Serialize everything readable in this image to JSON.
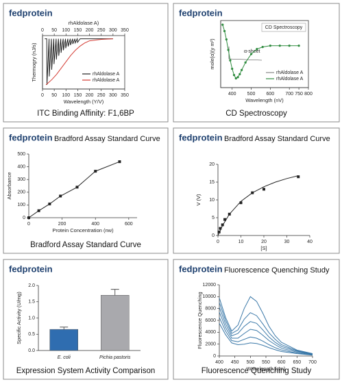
{
  "chart_data": [
    {
      "type": "line",
      "brand": "fedprotein",
      "caption": "ITC Binding Affinity: F1,6BP",
      "x_label": "Wavelength (Y/V)",
      "x2_label": "rhAldolase A)",
      "y_label": "Thermogry (nJ/s)",
      "xlim": [
        0,
        350
      ],
      "xticks": [
        0,
        50,
        100,
        150,
        200,
        250,
        300,
        350
      ],
      "x2ticks": [
        0,
        50,
        100,
        150,
        200,
        250,
        300,
        350
      ],
      "ylim": [
        -240,
        15
      ],
      "frame": true,
      "legend": "lower right",
      "series": [
        {
          "name": "rhAldolase A",
          "color": "#222222",
          "x": [
            10,
            18,
            19,
            28,
            29,
            38,
            39,
            48,
            49,
            58,
            59,
            68,
            69,
            78,
            79,
            88,
            89,
            98,
            99,
            108,
            109,
            118,
            119,
            128,
            129,
            138,
            139,
            148,
            149,
            160,
            300
          ],
          "values": [
            0,
            0,
            -220,
            0,
            -180,
            0,
            -148,
            0,
            -121,
            0,
            -99,
            0,
            -81,
            0,
            -67,
            0,
            -55,
            0,
            -45,
            0,
            -37,
            0,
            -30,
            0,
            -25,
            0,
            -20,
            0,
            -17,
            0,
            0
          ]
        },
        {
          "name": "rhAldolase A",
          "color": "#d33a32",
          "x": [
            15,
            20,
            40,
            60,
            80,
            100,
            120,
            140,
            160,
            180,
            200,
            250,
            300
          ],
          "values": [
            -220,
            -215,
            -195,
            -170,
            -140,
            -110,
            -80,
            -55,
            -35,
            -20,
            -10,
            -3,
            0
          ]
        }
      ]
    },
    {
      "type": "line",
      "brand": "fedprotein",
      "plot_title": "CD Spectroscopy",
      "caption": "CD Spectroscopy",
      "x_label": "Wavelength (nV)",
      "y_label": "mole(α)(y m²)",
      "annotation": "α-sheet",
      "xlim": [
        340,
        800
      ],
      "xticks": [
        400,
        500,
        600,
        700,
        750,
        800
      ],
      "ylim": [
        -1,
        0.6
      ],
      "frame": true,
      "legend": "lower right",
      "series": [
        {
          "name": "rhAldolase A",
          "color": "#888888",
          "x": [],
          "values": []
        },
        {
          "name": "rhAldolase A",
          "color": "#2e8b3e",
          "marker": "dot",
          "x": [
            350,
            360,
            370,
            380,
            390,
            400,
            410,
            420,
            430,
            440,
            450,
            470,
            500,
            530,
            560,
            600,
            650,
            700,
            750
          ],
          "values": [
            0.5,
            0.35,
            0.15,
            -0.1,
            -0.35,
            -0.55,
            -0.7,
            -0.78,
            -0.75,
            -0.68,
            -0.58,
            -0.4,
            -0.2,
            -0.08,
            -0.03,
            0,
            0,
            0,
            0
          ]
        }
      ]
    },
    {
      "type": "line",
      "brand": "fedprotein",
      "title": "Bradford Assay Standard Curve",
      "caption": "Bradford Assay Standard Curve",
      "x_label": "Protein Concentration (nw)",
      "y_label": "Absorbance",
      "xlim": [
        0,
        650
      ],
      "xticks": [
        0,
        200,
        400,
        600
      ],
      "ylim": [
        0,
        500
      ],
      "yticks": [
        0,
        100,
        200,
        300,
        400,
        500
      ],
      "series": [
        {
          "color": "#222222",
          "marker": "square",
          "x": [
            0,
            60,
            125,
            190,
            290,
            400,
            545
          ],
          "values": [
            0,
            55,
            108,
            170,
            240,
            365,
            440
          ]
        }
      ]
    },
    {
      "type": "line",
      "brand": "fedprotein",
      "title": "Bradford Assay Standard Curve",
      "x_label": "[S]",
      "y_label": "V (V)",
      "xlim": [
        0,
        40
      ],
      "xticks": [
        0,
        10,
        20,
        30,
        40
      ],
      "ylim": [
        0,
        20
      ],
      "yticks": [
        0,
        5,
        10,
        15,
        20
      ],
      "series": [
        {
          "color": "#222222",
          "x": [
            0,
            2,
            5,
            10,
            15,
            20,
            25,
            30,
            35
          ],
          "values": [
            0,
            2.8,
            6,
            9.6,
            12,
            13.7,
            15,
            16,
            16.8
          ]
        },
        {
          "color": "#222222",
          "marker": "square",
          "line": false,
          "x": [
            0.5,
            1,
            2,
            3,
            5,
            10,
            15,
            20,
            35
          ],
          "values": [
            1,
            2,
            3,
            4.5,
            6,
            9.2,
            12,
            13,
            16.5
          ]
        }
      ]
    },
    {
      "type": "bar",
      "brand": "fedprotein",
      "caption": "Expression System Activity Comparison",
      "y_label": "Specific Activity (U/mg)",
      "ylim": [
        0,
        2
      ],
      "yticks": [
        {
          "value": 0,
          "label": "0.0"
        },
        {
          "value": 0.5,
          "label": "0.5"
        },
        {
          "value": 1,
          "label": "1.0"
        },
        {
          "value": 1.5,
          "label": "1.5"
        },
        {
          "value": 2,
          "label": "2.0"
        }
      ],
      "categories": [
        "E. coli",
        "Pichia pastoris"
      ],
      "values": [
        0.65,
        1.7
      ],
      "errors": [
        0.07,
        0.18
      ],
      "colors": [
        "#2f6db0",
        "#a9a9ad"
      ]
    },
    {
      "type": "line",
      "brand": "fedprotein",
      "title": "Fluorescence Quenching Study",
      "caption": "Fluorescence Quenching Study",
      "x_label": "Wavelength (nm)",
      "y_label": "Fluorescence Quenching",
      "xlim": [
        400,
        700
      ],
      "xticks": [
        400,
        450,
        500,
        550,
        600,
        650,
        700
      ],
      "ylim": [
        0,
        12000
      ],
      "yticks": [
        0,
        2000,
        4000,
        6000,
        8000,
        10000,
        12000
      ],
      "series": [
        {
          "color": "#3a78a8",
          "x": [
            400,
            420,
            440,
            460,
            480,
            500,
            520,
            540,
            560,
            580,
            600,
            650,
            700
          ],
          "values": [
            9800,
            6500,
            4200,
            5200,
            8000,
            10000,
            9200,
            7200,
            5000,
            3400,
            2300,
            1000,
            400
          ]
        },
        {
          "color": "#3a78a8",
          "x": [
            400,
            420,
            440,
            460,
            480,
            500,
            520,
            540,
            560,
            580,
            600,
            650,
            700
          ],
          "values": [
            9000,
            6000,
            3800,
            4400,
            6200,
            7300,
            6800,
            5400,
            3900,
            2800,
            1900,
            900,
            350
          ]
        },
        {
          "color": "#3a78a8",
          "x": [
            400,
            420,
            440,
            460,
            480,
            500,
            520,
            540,
            560,
            580,
            600,
            650,
            700
          ],
          "values": [
            8200,
            5400,
            3400,
            3800,
            5000,
            5800,
            5500,
            4400,
            3200,
            2300,
            1600,
            800,
            300
          ]
        },
        {
          "color": "#3a78a8",
          "x": [
            400,
            420,
            440,
            460,
            480,
            500,
            520,
            540,
            560,
            580,
            600,
            650,
            700
          ],
          "values": [
            7400,
            4800,
            3000,
            3000,
            3800,
            4500,
            4300,
            3500,
            2600,
            1900,
            1300,
            650,
            250
          ]
        },
        {
          "color": "#3a78a8",
          "x": [
            400,
            420,
            440,
            460,
            480,
            500,
            520,
            540,
            560,
            580,
            600,
            650,
            700
          ],
          "values": [
            6500,
            4200,
            2600,
            2400,
            2800,
            3200,
            3000,
            2500,
            1900,
            1400,
            1000,
            500,
            200
          ]
        },
        {
          "color": "#3a78a8",
          "x": [
            400,
            420,
            440,
            460,
            480,
            500,
            520,
            540,
            560,
            580,
            600,
            650,
            700
          ],
          "values": [
            5500,
            3600,
            2200,
            1900,
            2000,
            2200,
            2100,
            1800,
            1400,
            1050,
            750,
            400,
            150
          ]
        }
      ]
    }
  ]
}
